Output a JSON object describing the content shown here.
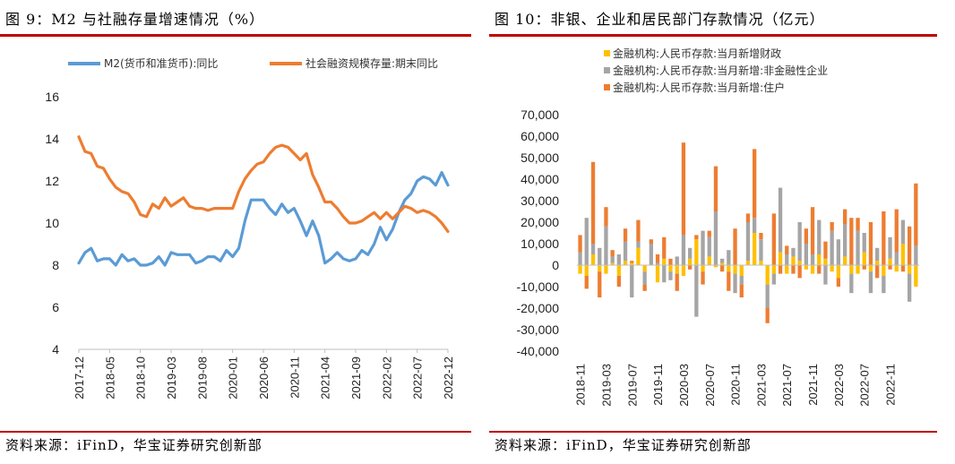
{
  "left": {
    "title": "图 9：M2 与社融存量增速情况（%）",
    "source": "资料来源：iFinD，华宝证券研究创新部"
  },
  "right": {
    "title": "图 10：非银、企业和居民部门存款情况（亿元）",
    "source": "资料来源：iFinD，华宝证券研究创新部"
  },
  "colors": {
    "rule": "#c00000",
    "blue": "#5b9bd5",
    "orange": "#ed7d31",
    "gold": "#ffc000",
    "gray": "#a5a5a5"
  },
  "chart_data": [
    {
      "type": "line",
      "title": "M2 与社融存量增速情况（%）",
      "ylim": [
        4,
        16
      ],
      "yticks": [
        "4",
        "6",
        "8",
        "10",
        "12",
        "14",
        "16"
      ],
      "x_tick_labels": [
        "2017-12",
        "2018-05",
        "2018-10",
        "2019-03",
        "2019-08",
        "2020-01",
        "2020-06",
        "2020-11",
        "2021-04",
        "2021-09",
        "2022-02",
        "2022-07",
        "2022-12"
      ],
      "legend_position": "top",
      "series": [
        {
          "name": "M2(货币和准货币):同比",
          "color": "#5b9bd5",
          "values": [
            8.1,
            8.6,
            8.8,
            8.2,
            8.3,
            8.3,
            8.0,
            8.5,
            8.2,
            8.3,
            8.0,
            8.0,
            8.1,
            8.4,
            8.0,
            8.6,
            8.5,
            8.5,
            8.5,
            8.1,
            8.2,
            8.4,
            8.4,
            8.2,
            8.7,
            8.4,
            8.8,
            10.1,
            11.1,
            11.1,
            11.1,
            10.7,
            10.4,
            10.9,
            10.5,
            10.7,
            10.1,
            9.4,
            10.1,
            9.4,
            8.1,
            8.3,
            8.6,
            8.3,
            8.2,
            8.3,
            8.7,
            8.5,
            9.0,
            9.8,
            9.2,
            9.7,
            10.5,
            11.1,
            11.4,
            12.0,
            12.2,
            12.1,
            11.8,
            12.4,
            11.8
          ]
        },
        {
          "name": "社会融资规模存量:期末同比",
          "color": "#ed7d31",
          "values": [
            14.1,
            13.4,
            13.3,
            12.7,
            12.6,
            12.1,
            11.7,
            11.5,
            11.4,
            11.0,
            10.4,
            10.3,
            10.9,
            10.7,
            11.2,
            10.8,
            11.0,
            11.2,
            10.8,
            10.7,
            10.7,
            10.6,
            10.7,
            10.7,
            10.7,
            10.7,
            11.5,
            12.1,
            12.5,
            12.8,
            12.9,
            13.3,
            13.6,
            13.7,
            13.6,
            13.3,
            13.0,
            13.3,
            12.3,
            11.7,
            11.0,
            11.0,
            10.7,
            10.3,
            10.0,
            10.0,
            10.1,
            10.3,
            10.5,
            10.2,
            10.5,
            10.2,
            10.5,
            10.8,
            10.7,
            10.5,
            10.6,
            10.5,
            10.3,
            10.0,
            9.6
          ]
        }
      ]
    },
    {
      "type": "bar",
      "stacked": true,
      "title": "非银、企业和居民部门存款情况（亿元）",
      "ylim": [
        -40000,
        70000
      ],
      "yticks": [
        "-40,000",
        "-30,000",
        "-20,000",
        "-10,000",
        "0",
        "10,000",
        "20,000",
        "30,000",
        "40,000",
        "50,000",
        "60,000",
        "70,000"
      ],
      "x_tick_labels": [
        "2018-11",
        "2019-03",
        "2019-07",
        "2019-11",
        "2020-03",
        "2020-07",
        "2020-11",
        "2021-03",
        "2021-07",
        "2021-11",
        "2022-03",
        "2022-07",
        "2022-11"
      ],
      "legend_position": "top",
      "series": [
        {
          "name": "金融机构:人民币存款:当月新增财政",
          "color": "#ffc000",
          "values": [
            -4000,
            -5000,
            5000,
            -3000,
            -4000,
            1000,
            -5000,
            2000,
            1000,
            8000,
            -3000,
            0,
            -8000,
            3000,
            -3000,
            -4000,
            -5000,
            3000,
            12000,
            -3000,
            4000,
            -1000,
            1000,
            -3000,
            -4000,
            -5000,
            2000,
            15000,
            2000,
            -9000,
            -4000,
            6000,
            -4000,
            4000,
            2000,
            -2000,
            -4000,
            5000,
            3000,
            -3000,
            -6000,
            4000,
            -4000,
            -4000,
            6000,
            -3000,
            2000,
            -5000,
            3000,
            -3000,
            10000,
            -4000,
            -10000
          ]
        },
        {
          "name": "金融机构:人民币存款:当月新增:非金融性企业",
          "color": "#a5a5a5",
          "values": [
            6000,
            22000,
            5000,
            8000,
            18000,
            3000,
            5000,
            9000,
            -15000,
            3000,
            -6000,
            10000,
            1000,
            -8000,
            -4000,
            4000,
            14000,
            5000,
            -24000,
            16000,
            9000,
            25000,
            2000,
            7000,
            -9000,
            -4000,
            18000,
            7000,
            10000,
            -11000,
            -5000,
            30000,
            5000,
            4000,
            18000,
            10000,
            5000,
            16000,
            -9000,
            16000,
            12000,
            15000,
            -9000,
            16000,
            9000,
            -10000,
            6000,
            -8000,
            10000,
            6000,
            11000,
            -13000,
            9000
          ]
        },
        {
          "name": "金融机构:人民币存款:当月新增:住户",
          "color": "#ed7d31",
          "values": [
            8000,
            -6000,
            38000,
            -12000,
            9000,
            3000,
            -5000,
            6000,
            1000,
            10000,
            -3000,
            2000,
            4000,
            10000,
            3000,
            -8000,
            43000,
            -2000,
            2000,
            -6000,
            3000,
            21000,
            -3000,
            -9000,
            17000,
            -6000,
            4000,
            32000,
            3000,
            -7000,
            24000,
            -4000,
            4000,
            -4000,
            -6000,
            7000,
            22000,
            -4000,
            8000,
            4000,
            -4000,
            7000,
            22000,
            6000,
            -2000,
            20000,
            -6000,
            25000,
            -2000,
            20000,
            -3000,
            18000,
            29000
          ]
        }
      ]
    }
  ]
}
